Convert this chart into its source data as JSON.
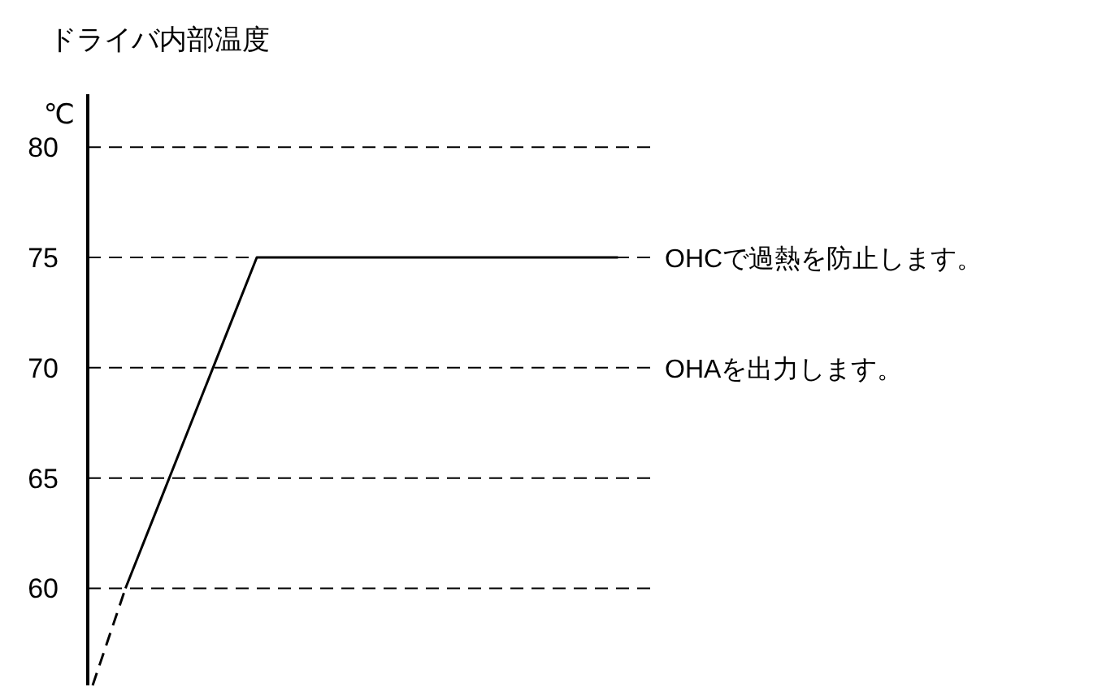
{
  "chart_data": {
    "type": "line",
    "title": "ドライバ内部温度",
    "ylabel": "℃",
    "categories": [
      null,
      null,
      null,
      null,
      null,
      null,
      null,
      null,
      null,
      null,
      null,
      null,
      null,
      null,
      null,
      null,
      null
    ],
    "ylim": [
      55.6,
      82.4
    ],
    "yticks": [
      60,
      65,
      70,
      75,
      80
    ],
    "grid": "y",
    "tick_labels": "y",
    "series": [
      {
        "color": "#000000",
        "line_style": "dashed",
        "values": [
          55.6,
          60,
          null,
          null,
          null,
          null,
          null,
          null,
          null,
          null,
          null,
          null,
          null,
          null,
          null,
          null,
          null
        ]
      },
      {
        "color": "#000000",
        "line_style": "solid",
        "values": [
          null,
          60,
          63.75,
          67.5,
          71.25,
          75,
          75,
          75,
          75,
          75,
          75,
          75,
          75,
          75,
          75,
          75,
          75
        ]
      }
    ],
    "annotations": [
      "OHCで過熱を防止します。",
      "OHAを出力します。"
    ]
  }
}
